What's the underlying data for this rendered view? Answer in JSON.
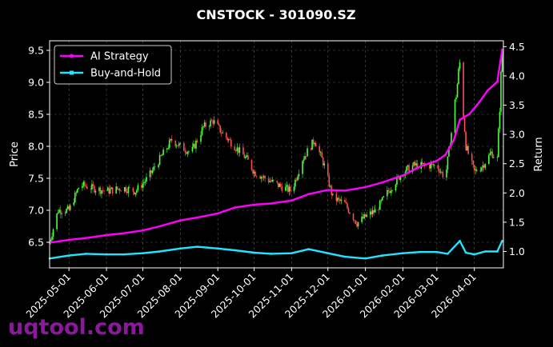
{
  "chart_data": {
    "type": "line",
    "title": "CNSTOCK - 301090.SZ",
    "xlabel": "",
    "ylabel": "Price",
    "y2label": "Return",
    "x_ticks": [
      "2025-05-01",
      "2025-06-01",
      "2025-07-01",
      "2025-08-01",
      "2025-09-01",
      "2025-10-01",
      "2025-11-01",
      "2025-12-01",
      "2026-01-01",
      "2026-02-01",
      "2026-03-01",
      "2026-04-01"
    ],
    "xlim": [
      "2025-04-15",
      "2026-04-25"
    ],
    "ylim": [
      6.1,
      9.65
    ],
    "y_ticks": [
      6.5,
      7.0,
      7.5,
      8.0,
      8.5,
      9.0,
      9.5
    ],
    "y2lim": [
      0.72,
      4.6
    ],
    "y2_ticks": [
      1.0,
      1.5,
      2.0,
      2.5,
      3.0,
      3.5,
      4.0,
      4.5
    ],
    "grid": true,
    "legend_position": "top-left",
    "price_candles": {
      "name": "Price",
      "up_color": "#4cff3a",
      "down_color": "#ff4d4d",
      "close_points": [
        [
          "2025-04-15",
          6.5
        ],
        [
          "2025-04-22",
          7.0
        ],
        [
          "2025-05-01",
          7.0
        ],
        [
          "2025-05-10",
          7.4
        ],
        [
          "2025-05-20",
          7.35
        ],
        [
          "2025-06-01",
          7.3
        ],
        [
          "2025-06-15",
          7.35
        ],
        [
          "2025-06-25",
          7.3
        ],
        [
          "2025-07-05",
          7.5
        ],
        [
          "2025-07-15",
          7.8
        ],
        [
          "2025-07-25",
          8.1
        ],
        [
          "2025-08-01",
          8.0
        ],
        [
          "2025-08-10",
          7.9
        ],
        [
          "2025-08-20",
          8.3
        ],
        [
          "2025-08-28",
          8.4
        ],
        [
          "2025-09-05",
          8.2
        ],
        [
          "2025-09-15",
          8.0
        ],
        [
          "2025-09-25",
          7.8
        ],
        [
          "2025-10-01",
          7.6
        ],
        [
          "2025-10-10",
          7.5
        ],
        [
          "2025-10-20",
          7.4
        ],
        [
          "2025-11-01",
          7.3
        ],
        [
          "2025-11-10",
          7.8
        ],
        [
          "2025-11-20",
          8.1
        ],
        [
          "2025-11-28",
          7.7
        ],
        [
          "2025-12-05",
          7.2
        ],
        [
          "2025-12-15",
          7.1
        ],
        [
          "2025-12-25",
          6.8
        ],
        [
          "2026-01-01",
          6.9
        ],
        [
          "2026-01-10",
          7.0
        ],
        [
          "2026-01-20",
          7.3
        ],
        [
          "2026-02-01",
          7.6
        ],
        [
          "2026-02-10",
          7.7
        ],
        [
          "2026-02-20",
          7.7
        ],
        [
          "2026-03-01",
          7.7
        ],
        [
          "2026-03-08",
          7.5
        ],
        [
          "2026-03-15",
          8.5
        ],
        [
          "2026-03-20",
          9.3
        ],
        [
          "2026-03-25",
          8.0
        ],
        [
          "2026-04-01",
          7.6
        ],
        [
          "2026-04-08",
          7.7
        ],
        [
          "2026-04-15",
          7.9
        ],
        [
          "2026-04-20",
          7.8
        ],
        [
          "2026-04-24",
          9.5
        ]
      ]
    },
    "series": [
      {
        "name": "AI Strategy",
        "color": "#ff00ff",
        "axis": "return",
        "points": [
          [
            "2025-04-15",
            1.15
          ],
          [
            "2025-05-01",
            1.2
          ],
          [
            "2025-05-15",
            1.23
          ],
          [
            "2025-06-01",
            1.28
          ],
          [
            "2025-06-15",
            1.31
          ],
          [
            "2025-07-01",
            1.36
          ],
          [
            "2025-07-15",
            1.43
          ],
          [
            "2025-08-01",
            1.53
          ],
          [
            "2025-08-15",
            1.58
          ],
          [
            "2025-09-01",
            1.65
          ],
          [
            "2025-09-15",
            1.75
          ],
          [
            "2025-10-01",
            1.8
          ],
          [
            "2025-10-15",
            1.82
          ],
          [
            "2025-11-01",
            1.87
          ],
          [
            "2025-11-15",
            1.98
          ],
          [
            "2025-12-01",
            2.05
          ],
          [
            "2025-12-15",
            2.04
          ],
          [
            "2026-01-01",
            2.1
          ],
          [
            "2026-01-15",
            2.18
          ],
          [
            "2026-02-01",
            2.3
          ],
          [
            "2026-02-15",
            2.45
          ],
          [
            "2026-03-01",
            2.55
          ],
          [
            "2026-03-08",
            2.65
          ],
          [
            "2026-03-15",
            2.9
          ],
          [
            "2026-03-20",
            3.25
          ],
          [
            "2026-03-28",
            3.35
          ],
          [
            "2026-04-05",
            3.55
          ],
          [
            "2026-04-12",
            3.75
          ],
          [
            "2026-04-20",
            3.9
          ],
          [
            "2026-04-24",
            4.45
          ]
        ]
      },
      {
        "name": "Buy-and-Hold",
        "color": "#22e4ff",
        "axis": "return",
        "points": [
          [
            "2025-04-15",
            0.88
          ],
          [
            "2025-05-01",
            0.93
          ],
          [
            "2025-05-15",
            0.96
          ],
          [
            "2025-06-01",
            0.95
          ],
          [
            "2025-06-15",
            0.95
          ],
          [
            "2025-07-01",
            0.97
          ],
          [
            "2025-07-15",
            1.0
          ],
          [
            "2025-08-01",
            1.05
          ],
          [
            "2025-08-15",
            1.08
          ],
          [
            "2025-09-01",
            1.05
          ],
          [
            "2025-09-15",
            1.02
          ],
          [
            "2025-10-01",
            0.98
          ],
          [
            "2025-10-15",
            0.96
          ],
          [
            "2025-11-01",
            0.97
          ],
          [
            "2025-11-15",
            1.04
          ],
          [
            "2025-12-01",
            0.97
          ],
          [
            "2025-12-15",
            0.91
          ],
          [
            "2026-01-01",
            0.88
          ],
          [
            "2026-01-15",
            0.93
          ],
          [
            "2026-02-01",
            0.97
          ],
          [
            "2026-02-15",
            0.99
          ],
          [
            "2026-03-01",
            0.99
          ],
          [
            "2026-03-10",
            0.96
          ],
          [
            "2026-03-20",
            1.18
          ],
          [
            "2026-03-25",
            0.98
          ],
          [
            "2026-04-01",
            0.95
          ],
          [
            "2026-04-10",
            1.0
          ],
          [
            "2026-04-20",
            1.0
          ],
          [
            "2026-04-24",
            1.18
          ]
        ]
      }
    ]
  },
  "watermark": "uqtool.com"
}
